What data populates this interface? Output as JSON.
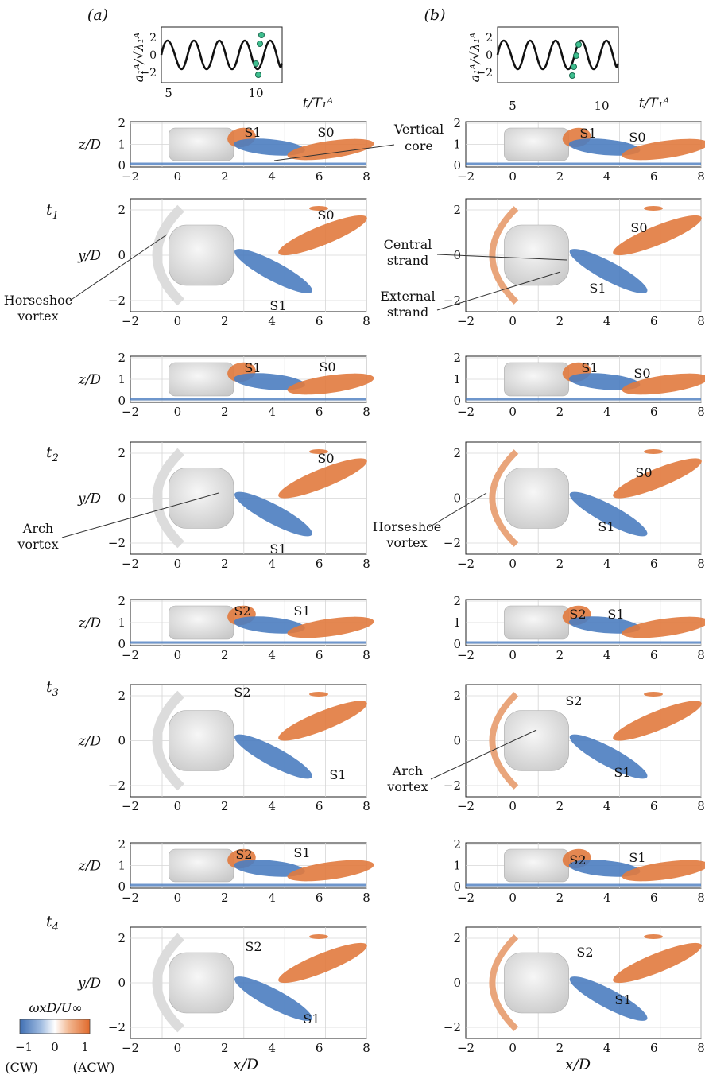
{
  "figure": {
    "col_labels": [
      "(a)",
      "(b)"
    ],
    "time_trace": {
      "ylabel": "a₁ᴬ/√λ₁ᴬ",
      "xlabel": "t/T₁ᴬ",
      "xticks": [
        "5",
        "10"
      ],
      "yticks": [
        "2",
        "0",
        "−2"
      ]
    },
    "axis_labels": {
      "z": "z/D",
      "y": "y/D",
      "x": "x/D"
    },
    "xticks": [
      "−2",
      "0",
      "2",
      "4",
      "6",
      "8"
    ],
    "zticks": [
      "2",
      "1",
      "0"
    ],
    "yticks": [
      "2",
      "0",
      "−2"
    ],
    "time_labels": [
      "t1",
      "t2",
      "t3",
      "t4"
    ],
    "time_label_base": "t",
    "time_label_subs": [
      "1",
      "2",
      "3",
      "4"
    ],
    "t3_left_ylabel": "z/D",
    "annotations_a": {
      "vertical_core": [
        "Vertical",
        "core"
      ],
      "horseshoe": [
        "Horseshoe",
        "vortex"
      ],
      "arch": [
        "Arch",
        "vortex"
      ]
    },
    "annotations_b": {
      "central": [
        "Central",
        "strand"
      ],
      "external": [
        "External",
        "strand"
      ],
      "horseshoe": [
        "Horseshoe",
        "vortex"
      ],
      "arch": [
        "Arch",
        "vortex"
      ]
    },
    "structure_labels": {
      "S0": "S0",
      "S1": "S1",
      "S2": "S2"
    },
    "colorbar": {
      "title": "ωxD/U∞",
      "ticks": [
        "−1",
        "0",
        "1"
      ],
      "cw": "(CW)",
      "acw": "(ACW)",
      "colors": [
        "#3f6fb3",
        "#8fb0dc",
        "#ffffff",
        "#f3b48c",
        "#e06a2c"
      ]
    },
    "colors": {
      "blue": "#4b7dc0",
      "orange": "#e17a3e",
      "grey": "#e5e5e5"
    }
  }
}
